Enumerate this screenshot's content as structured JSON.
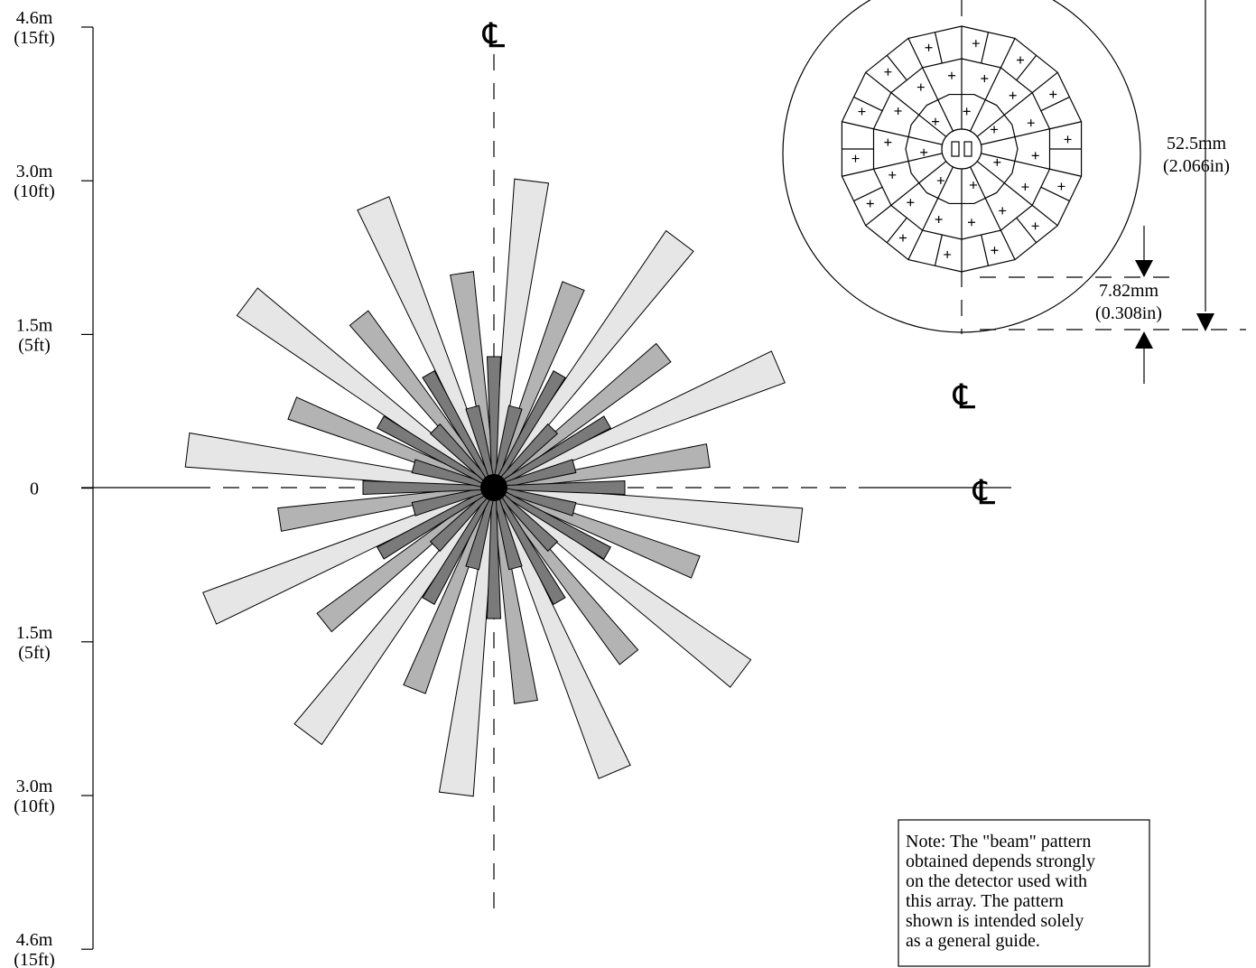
{
  "scale": {
    "labels": [
      {
        "metric": "4.6m",
        "imperial": "(15ft)"
      },
      {
        "metric": "3.0m",
        "imperial": "(10ft)"
      },
      {
        "metric": "1.5m",
        "imperial": "(5ft)"
      },
      {
        "metric": "0"
      },
      {
        "metric": "1.5m",
        "imperial": "(5ft)"
      },
      {
        "metric": "3.0m",
        "imperial": "(10ft)"
      },
      {
        "metric": "4.6m",
        "imperial": "(15ft)"
      }
    ]
  },
  "centerlines": [
    "℄",
    "℄",
    "℄"
  ],
  "dimensions": {
    "outer": {
      "metric": "52.5mm",
      "imperial": "(2.066in)"
    },
    "inner": {
      "metric": "7.82mm",
      "imperial": "(0.308in)"
    }
  },
  "note": {
    "lines": [
      "Note:  The \"beam\" pattern",
      "obtained depends strongly",
      "on the detector used with",
      "this array.  The pattern",
      "shown is intended solely",
      "as a general guide."
    ]
  }
}
